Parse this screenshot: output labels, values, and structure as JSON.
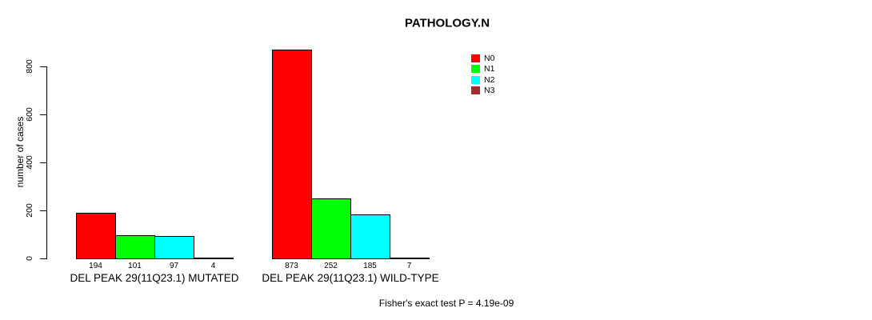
{
  "title": "PATHOLOGY.N",
  "footer": "Fisher's exact test P = 4.19e-09",
  "colors": {
    "background": "#FFFFFF",
    "axis": "#000000",
    "text": "#000000",
    "n0": "#FF0000",
    "n1": "#00FF00",
    "n2": "#00FFFF",
    "n3": "#A52A2A"
  },
  "legend": {
    "entries": [
      {
        "label": "N0",
        "color": "#FF0000"
      },
      {
        "label": "N1",
        "color": "#00FF00"
      },
      {
        "label": "N2",
        "color": "#00FFFF"
      },
      {
        "label": "N3",
        "color": "#A52A2A"
      }
    ]
  },
  "chart_data": {
    "type": "bar",
    "title": "PATHOLOGY.N",
    "ylabel": "number of cases",
    "xlabel": "",
    "annotation": "Fisher's exact test P = 4.19e-09",
    "grid": false,
    "legend_position": "top-right",
    "bar_value_labels": true,
    "yticks": [
      0,
      200,
      400,
      600,
      800
    ],
    "ylim": [
      0,
      900
    ],
    "series_labels": [
      "N0",
      "N1",
      "N2",
      "N3"
    ],
    "series_colors": [
      "#FF0000",
      "#00FF00",
      "#00FFFF",
      "#A52A2A"
    ],
    "groups": [
      {
        "label": "DEL PEAK 29(11Q23.1) MUTATED",
        "values": [
          194,
          101,
          97,
          4
        ]
      },
      {
        "label": "DEL PEAK 29(11Q23.1) WILD-TYPE",
        "values": [
          873,
          252,
          185,
          7
        ]
      }
    ]
  }
}
